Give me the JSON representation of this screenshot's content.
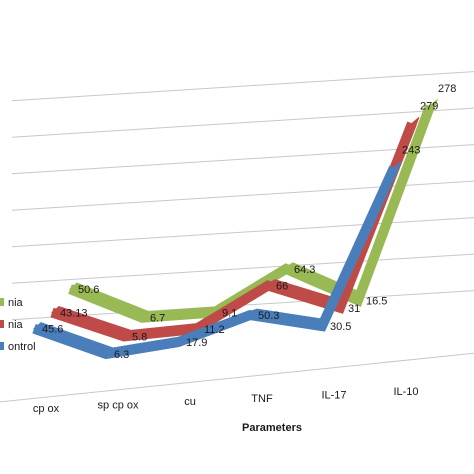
{
  "chart_data": {
    "type": "line",
    "view": "3d-ribbon",
    "xlabel": "Parameters",
    "ylabel": "",
    "title": "",
    "categories": [
      "cp ox",
      "sp cp ox",
      "cu",
      "TNF",
      "IL-17",
      "IL-10"
    ],
    "grid": true,
    "series": [
      {
        "name": "ontrol",
        "color": "#4a7ebb",
        "values": [
          45.6,
          6.3,
          17.9,
          50.3,
          30.5,
          243
        ],
        "labels": [
          "45.6",
          "6.3",
          "17.9",
          "50.3",
          "30.5",
          "243"
        ]
      },
      {
        "name": "nia",
        "color": "#be4b48",
        "values": [
          43.13,
          5.8,
          11.2,
          66,
          31,
          279
        ],
        "labels": [
          "43.13",
          "5.8",
          "11.2",
          "66",
          "31",
          "279"
        ]
      },
      {
        "name": "nia",
        "color": "#98b954",
        "values": [
          50.6,
          6.7,
          9.1,
          64.3,
          16.5,
          278
        ],
        "labels": [
          "50.6",
          "6.7",
          "9.1",
          "64.3",
          "16.5",
          "278"
        ]
      }
    ]
  }
}
